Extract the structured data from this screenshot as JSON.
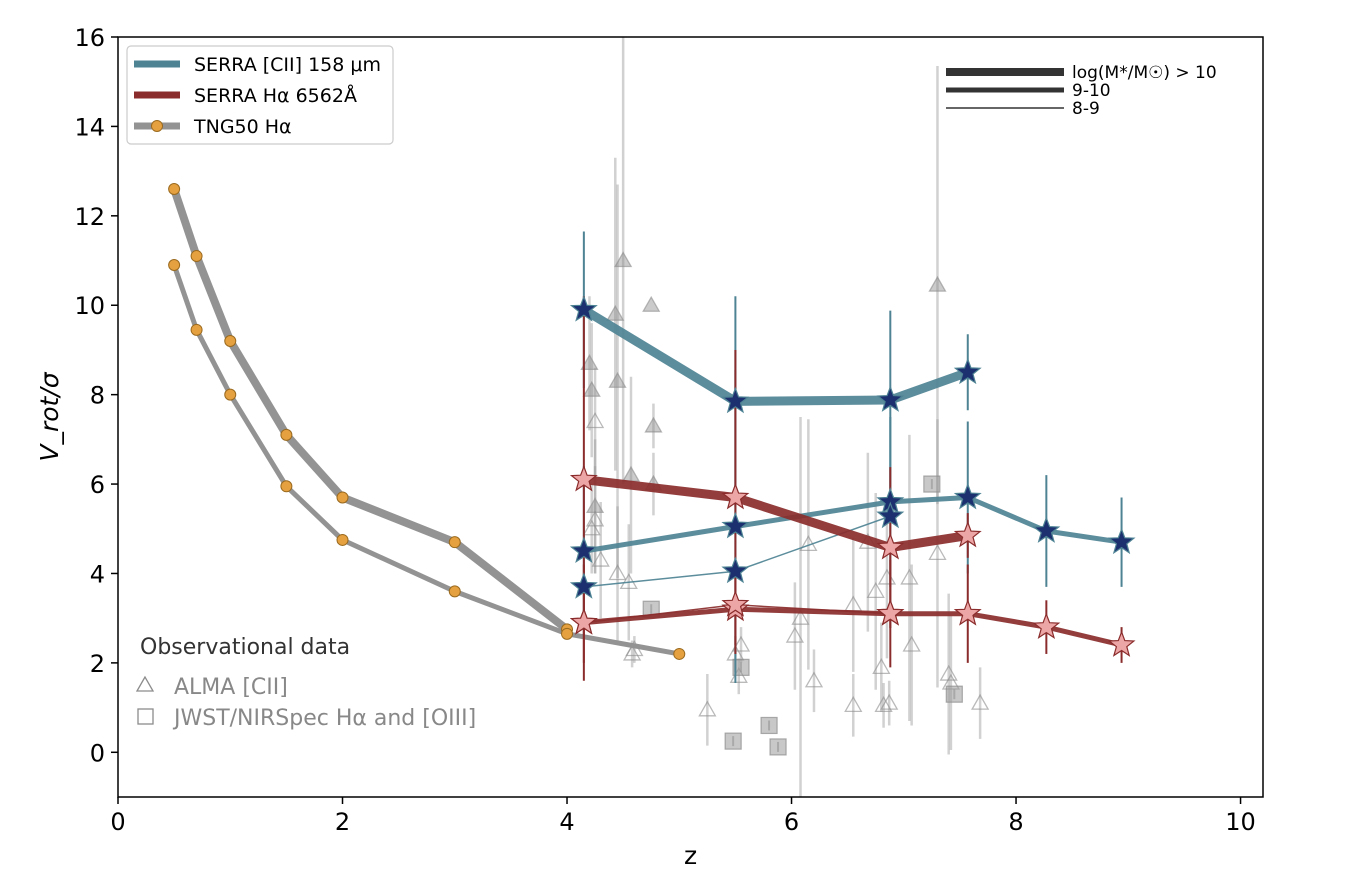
{
  "chart_data": {
    "type": "line",
    "xlabel": "z",
    "ylabel": "V_rot/σ",
    "xlim": [
      0,
      10.2
    ],
    "ylim": [
      -1,
      16
    ],
    "xticks": [
      0,
      2,
      4,
      6,
      8,
      10
    ],
    "yticks": [
      0,
      2,
      4,
      6,
      8,
      10,
      12,
      14,
      16
    ],
    "grid": false,
    "legend": {
      "placement": "top-left",
      "entries": [
        {
          "label": "SERRA [CII] 158 μm",
          "color": "#4e8394",
          "marker": "none"
        },
        {
          "label": "SERRA Hα 6562Å",
          "color": "#8b2c2c",
          "marker": "none"
        },
        {
          "label": "TNG50 Hα",
          "color": "#939393",
          "marker": "circle",
          "marker_color": "#e5a040"
        }
      ]
    },
    "mass_legend": {
      "placement": "top-right",
      "entries": [
        {
          "label": "log(M*/M☉) > 10",
          "width": 8
        },
        {
          "label": "9-10",
          "width": 5
        },
        {
          "label": "8-9",
          "width": 1.5
        }
      ]
    },
    "observational_legend": {
      "title": "Observational data",
      "entries": [
        {
          "label": "ALMA [CII]",
          "marker": "triangle"
        },
        {
          "label": "JWST/NIRSpec Hα and [OIII]",
          "marker": "square"
        }
      ]
    },
    "series": [
      {
        "group": "TNG50 Hα",
        "mass_bin": ">10",
        "color": "#939393",
        "width": 8,
        "x": [
          0.5,
          0.7,
          1.0,
          1.5,
          2.0,
          3.0,
          4.0
        ],
        "y": [
          12.6,
          11.1,
          9.2,
          7.1,
          5.7,
          4.7,
          2.75
        ]
      },
      {
        "group": "TNG50 Hα",
        "mass_bin": "9-10",
        "color": "#939393",
        "width": 5,
        "x": [
          0.5,
          0.7,
          1.0,
          1.5,
          2.0,
          3.0,
          4.0,
          5.0
        ],
        "y": [
          10.9,
          9.45,
          8.0,
          5.95,
          4.75,
          3.6,
          2.65,
          2.2
        ]
      },
      {
        "group": "SERRA [CII] 158 μm",
        "mass_bin": ">10",
        "color": "#4e8394",
        "width": 9,
        "x": [
          4.15,
          5.5,
          6.88,
          7.57
        ],
        "y": [
          9.9,
          7.85,
          7.88,
          8.5
        ],
        "yerr": [
          1.75,
          2.35,
          2.0,
          0.85
        ]
      },
      {
        "group": "SERRA [CII] 158 μm",
        "mass_bin": "9-10",
        "color": "#4e8394",
        "width": 5,
        "x": [
          4.15,
          5.5,
          6.88,
          7.57,
          8.27,
          8.94
        ],
        "y": [
          4.5,
          5.05,
          5.6,
          5.7,
          4.95,
          4.7
        ],
        "yerr": [
          1.9,
          3.5,
          1.9,
          1.7,
          1.25,
          1.0
        ]
      },
      {
        "group": "SERRA [CII] 158 μm",
        "mass_bin": "8-9",
        "color": "#4e8394",
        "width": 1.5,
        "x": [
          4.15,
          5.5,
          6.88
        ],
        "y": [
          3.7,
          4.05,
          5.28
        ],
        "yerr": [
          0.0,
          0.0,
          0.0
        ]
      },
      {
        "group": "SERRA Hα 6562Å",
        "mass_bin": ">10",
        "color": "#8b2c2c",
        "width": 9,
        "x": [
          4.15,
          5.5,
          6.88,
          7.57
        ],
        "y": [
          6.1,
          5.7,
          4.58,
          4.85
        ],
        "yerr": [
          4.1,
          3.3,
          1.8,
          0.5
        ]
      },
      {
        "group": "SERRA Hα 6562Å",
        "mass_bin": "9-10",
        "color": "#8b2c2c",
        "width": 5,
        "x": [
          4.15,
          5.5,
          6.88,
          7.57,
          8.27,
          8.94
        ],
        "y": [
          2.9,
          3.2,
          3.1,
          3.1,
          2.8,
          2.4
        ],
        "yerr": [
          1.3,
          1.0,
          1.2,
          1.1,
          0.6,
          0.4
        ]
      },
      {
        "group": "SERRA Hα 6562Å",
        "mass_bin": "8-9",
        "color": "#8b2c2c",
        "width": 1.5,
        "x": [
          4.15,
          5.5,
          6.88
        ],
        "y": [
          2.9,
          3.3,
          3.1
        ],
        "yerr": [
          0.0,
          0.0,
          0.0
        ]
      }
    ],
    "observations_alma": [
      {
        "x": 4.2,
        "y": 8.7,
        "err": 1.5,
        "filled": true
      },
      {
        "x": 4.22,
        "y": 8.1,
        "err": 1.5,
        "filled": true
      },
      {
        "x": 4.25,
        "y": 7.4,
        "err": 1.2,
        "filled": false
      },
      {
        "x": 4.25,
        "y": 5.5,
        "err": 1.5,
        "filled": true
      },
      {
        "x": 4.25,
        "y": 5.2,
        "err": 1.2,
        "filled": false
      },
      {
        "x": 4.22,
        "y": 5.0,
        "err": 1.0,
        "filled": false
      },
      {
        "x": 4.3,
        "y": 4.3,
        "err": 1.3,
        "filled": false
      },
      {
        "x": 4.43,
        "y": 9.8,
        "err": 3.5,
        "filled": true
      },
      {
        "x": 4.45,
        "y": 8.3,
        "err": 4.4,
        "filled": true
      },
      {
        "x": 4.5,
        "y": 11.0,
        "err": 5.0,
        "filled": true
      },
      {
        "x": 4.45,
        "y": 4.0,
        "err": 1.5,
        "filled": false
      },
      {
        "x": 4.55,
        "y": 3.8,
        "err": 1.3,
        "filled": false
      },
      {
        "x": 4.57,
        "y": 6.2,
        "err": 2.2,
        "filled": true
      },
      {
        "x": 4.58,
        "y": 2.2,
        "err": 0.3,
        "filled": false
      },
      {
        "x": 4.6,
        "y": 2.3,
        "err": 0.3,
        "filled": false
      },
      {
        "x": 4.75,
        "y": 10.0,
        "err": 0.0,
        "filled": true
      },
      {
        "x": 4.77,
        "y": 7.3,
        "err": 0.5,
        "filled": true
      },
      {
        "x": 4.77,
        "y": 6.0,
        "err": 0.7,
        "filled": true
      },
      {
        "x": 5.25,
        "y": 0.95,
        "err": 0.8,
        "filled": false
      },
      {
        "x": 5.5,
        "y": 2.2,
        "err": 0.4,
        "filled": false
      },
      {
        "x": 5.53,
        "y": 1.7,
        "err": 0.4,
        "filled": false
      },
      {
        "x": 5.55,
        "y": 2.4,
        "err": 0.4,
        "filled": false
      },
      {
        "x": 6.03,
        "y": 2.6,
        "err": 1.2,
        "filled": false
      },
      {
        "x": 6.08,
        "y": 3.0,
        "err": 4.5,
        "filled": false
      },
      {
        "x": 6.15,
        "y": 4.65,
        "err": 2.8,
        "filled": false
      },
      {
        "x": 6.2,
        "y": 1.6,
        "err": 0.7,
        "filled": false
      },
      {
        "x": 6.55,
        "y": 3.3,
        "err": 1.5,
        "filled": false
      },
      {
        "x": 6.55,
        "y": 1.05,
        "err": 0.7,
        "filled": false
      },
      {
        "x": 6.68,
        "y": 4.7,
        "err": 2.0,
        "filled": false
      },
      {
        "x": 6.75,
        "y": 3.6,
        "err": 2.2,
        "filled": false
      },
      {
        "x": 6.8,
        "y": 1.9,
        "err": 1.0,
        "filled": false
      },
      {
        "x": 6.82,
        "y": 1.05,
        "err": 0.5,
        "filled": false
      },
      {
        "x": 6.85,
        "y": 3.9,
        "err": 1.8,
        "filled": false
      },
      {
        "x": 6.87,
        "y": 1.1,
        "err": 0.5,
        "filled": false
      },
      {
        "x": 7.05,
        "y": 3.9,
        "err": 3.2,
        "filled": false
      },
      {
        "x": 7.07,
        "y": 2.4,
        "err": 1.8,
        "filled": false
      },
      {
        "x": 7.3,
        "y": 10.45,
        "err": 4.9,
        "filled": true
      },
      {
        "x": 7.3,
        "y": 4.45,
        "err": 3.0,
        "filled": false
      },
      {
        "x": 7.4,
        "y": 1.75,
        "err": 1.8,
        "filled": false
      },
      {
        "x": 7.42,
        "y": 1.55,
        "err": 1.5,
        "filled": false
      },
      {
        "x": 7.68,
        "y": 1.1,
        "err": 0.8,
        "filled": false
      }
    ],
    "observations_jwst": [
      {
        "x": 4.75,
        "y": 3.2
      },
      {
        "x": 5.48,
        "y": 0.25
      },
      {
        "x": 5.55,
        "y": 1.9
      },
      {
        "x": 5.8,
        "y": 0.6
      },
      {
        "x": 5.88,
        "y": 0.12
      },
      {
        "x": 7.25,
        "y": 6.0
      },
      {
        "x": 7.45,
        "y": 1.3
      }
    ]
  }
}
